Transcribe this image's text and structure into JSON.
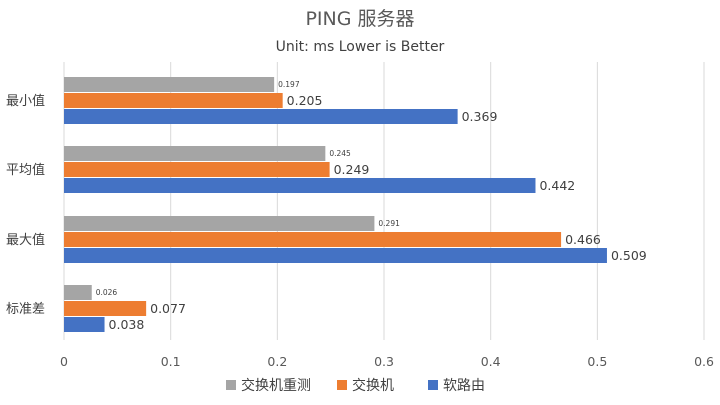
{
  "chart_data": {
    "type": "bar",
    "orientation": "horizontal",
    "title": "PING 服务器",
    "subtitle": "Unit: ms Lower is Better",
    "categories": [
      "最小值",
      "平均值",
      "最大值",
      "标准差"
    ],
    "series": [
      {
        "name": "交换机重测",
        "color": "#A5A5A5",
        "values": [
          0.197,
          0.245,
          0.291,
          0.026
        ],
        "labels": [
          "0.197",
          "0.245",
          "0.291",
          "0.026"
        ]
      },
      {
        "name": "交换机",
        "color": "#ED7D31",
        "values": [
          0.205,
          0.249,
          0.466,
          0.077
        ],
        "labels": [
          "0.205",
          "0.249",
          "0.466",
          "0.077"
        ]
      },
      {
        "name": "软路由",
        "color": "#4472C4",
        "values": [
          0.369,
          0.442,
          0.509,
          0.038
        ],
        "labels": [
          "0.369",
          "0.442",
          "0.509",
          "0.038"
        ]
      }
    ],
    "xlim": [
      0,
      0.6
    ],
    "xticks": [
      0,
      0.1,
      0.2,
      0.3,
      0.4,
      0.5,
      0.6
    ],
    "xtick_labels": [
      "0",
      "0.1",
      "0.2",
      "0.3",
      "0.4",
      "0.5",
      "0.6"
    ],
    "grid": true,
    "legend": "bottom"
  }
}
